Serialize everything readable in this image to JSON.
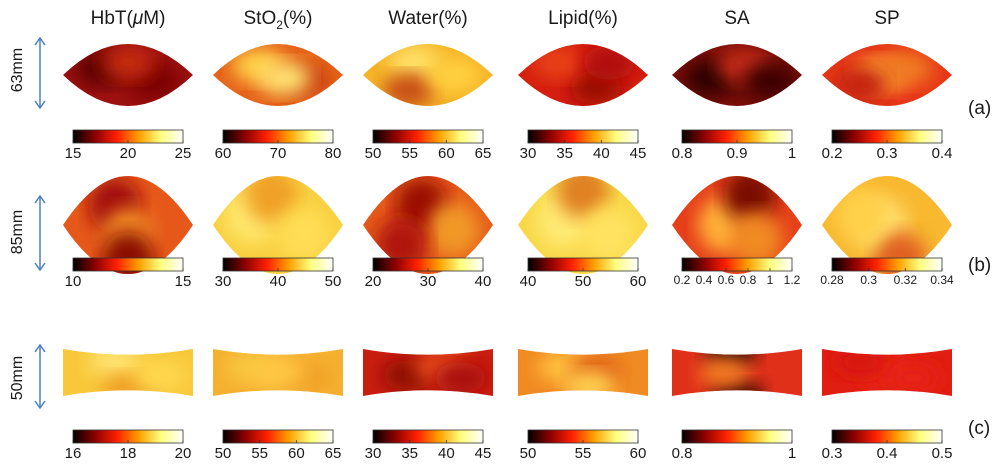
{
  "columns": [
    {
      "pre": "HbT(",
      "mu": "μ",
      "post": "M)",
      "sub": ""
    },
    {
      "pre": "StO",
      "mu": "",
      "post": "(%)",
      "sub": "2"
    },
    {
      "pre": "Water(%)",
      "mu": "",
      "post": "",
      "sub": ""
    },
    {
      "pre": "Lipid(%)",
      "mu": "",
      "post": "",
      "sub": ""
    },
    {
      "pre": "SA",
      "mu": "",
      "post": "",
      "sub": ""
    },
    {
      "pre": "SP",
      "mu": "",
      "post": "",
      "sub": ""
    }
  ],
  "rows": [
    {
      "label": "(a)",
      "size": "63mm",
      "shape": "lens",
      "maps": [
        {
          "base": "#9c1010",
          "spots": [
            [
              "#5a0000",
              0.3,
              0.4
            ],
            [
              "#7a0505",
              0.7,
              0.6
            ],
            [
              "#c42a10",
              0.5,
              0.3
            ]
          ]
        },
        {
          "base": "#e5641a",
          "spots": [
            [
              "#ffd24a",
              0.35,
              0.35
            ],
            [
              "#c83c10",
              0.7,
              0.6
            ],
            [
              "#ffe070",
              0.55,
              0.55
            ]
          ]
        },
        {
          "base": "#f5b428",
          "spots": [
            [
              "#ffe066",
              0.4,
              0.3
            ],
            [
              "#c85018",
              0.35,
              0.75
            ],
            [
              "#ffd040",
              0.7,
              0.5
            ]
          ]
        },
        {
          "base": "#d41e10",
          "spots": [
            [
              "#9a0a05",
              0.6,
              0.7
            ],
            [
              "#e84018",
              0.3,
              0.3
            ],
            [
              "#b01008",
              0.7,
              0.3
            ]
          ]
        },
        {
          "base": "#7a0d08",
          "spots": [
            [
              "#2a0000",
              0.3,
              0.55
            ],
            [
              "#c42a12",
              0.55,
              0.35
            ],
            [
              "#3a0000",
              0.75,
              0.6
            ]
          ]
        },
        {
          "base": "#e53818",
          "spots": [
            [
              "#ffa838",
              0.45,
              0.5
            ],
            [
              "#f07a20",
              0.65,
              0.4
            ],
            [
              "#c42010",
              0.3,
              0.65
            ]
          ]
        }
      ]
    },
    {
      "label": "(b)",
      "size": "85mm",
      "shape": "lens",
      "maps": [
        {
          "base": "#e5581a",
          "spots": [
            [
              "#a01008",
              0.4,
              0.3
            ],
            [
              "#f08820",
              0.5,
              0.6
            ],
            [
              "#8a0c05",
              0.5,
              0.85
            ]
          ]
        },
        {
          "base": "#f8d040",
          "spots": [
            [
              "#ffe870",
              0.3,
              0.4
            ],
            [
              "#f0a028",
              0.45,
              0.2
            ],
            [
              "#ffdd55",
              0.7,
              0.6
            ]
          ]
        },
        {
          "base": "#e55a1a",
          "spots": [
            [
              "#9a0c05",
              0.45,
              0.3
            ],
            [
              "#f09828",
              0.7,
              0.55
            ],
            [
              "#b01810",
              0.3,
              0.7
            ]
          ]
        },
        {
          "base": "#f8d848",
          "spots": [
            [
              "#ffea75",
              0.35,
              0.45
            ],
            [
              "#e08020",
              0.5,
              0.15
            ],
            [
              "#ffe260",
              0.7,
              0.6
            ]
          ]
        },
        {
          "base": "#e5401a",
          "spots": [
            [
              "#ffb038",
              0.4,
              0.5
            ],
            [
              "#7a0a05",
              0.6,
              0.2
            ],
            [
              "#f08a22",
              0.65,
              0.65
            ]
          ]
        },
        {
          "base": "#f8b830",
          "spots": [
            [
              "#ffe070",
              0.45,
              0.5
            ],
            [
              "#e06020",
              0.6,
              0.85
            ],
            [
              "#ffd048",
              0.3,
              0.4
            ]
          ]
        }
      ]
    },
    {
      "label": "(c)",
      "size": "50mm",
      "shape": "barrel",
      "maps": [
        {
          "base": "#f8c83a",
          "spots": [
            [
              "#ffe270",
              0.4,
              0.3
            ],
            [
              "#f0a028",
              0.5,
              0.8
            ],
            [
              "#ffd850",
              0.75,
              0.55
            ]
          ]
        },
        {
          "base": "#f5b030",
          "spots": [
            [
              "#f8c840",
              0.3,
              0.4
            ],
            [
              "#f0a028",
              0.7,
              0.6
            ],
            [
              "#ffc845",
              0.5,
              0.5
            ]
          ]
        },
        {
          "base": "#c81e10",
          "spots": [
            [
              "#8a0805",
              0.35,
              0.55
            ],
            [
              "#e8501a",
              0.6,
              0.4
            ],
            [
              "#a81008",
              0.75,
              0.6
            ]
          ]
        },
        {
          "base": "#f08a22",
          "spots": [
            [
              "#ffc040",
              0.35,
              0.4
            ],
            [
              "#e06018",
              0.6,
              0.5
            ],
            [
              "#ffd050",
              0.55,
              0.75
            ]
          ]
        },
        {
          "base": "#e0301a",
          "spots": [
            [
              "#1a0000",
              0.45,
              0.1
            ],
            [
              "#2a0000",
              0.5,
              0.92
            ],
            [
              "#f07a22",
              0.4,
              0.5
            ]
          ]
        },
        {
          "base": "#e01e12",
          "spots": [
            [
              "#e82818",
              0.5,
              0.5
            ],
            [
              "#d81810",
              0.3,
              0.3
            ],
            [
              "#e62414",
              0.7,
              0.6
            ]
          ]
        }
      ]
    }
  ],
  "colorbars": [
    [
      {
        "ticks": [
          "15",
          "20",
          "25"
        ],
        "small": false
      },
      {
        "ticks": [
          "60",
          "70",
          "80"
        ],
        "small": false
      },
      {
        "ticks": [
          "50",
          "55",
          "60",
          "65"
        ],
        "small": false
      },
      {
        "ticks": [
          "30",
          "35",
          "40",
          "45"
        ],
        "small": false
      },
      {
        "ticks": [
          "0.8",
          "0.9",
          "1"
        ],
        "small": false
      },
      {
        "ticks": [
          "0.2",
          "0.3",
          "0.4"
        ],
        "small": false
      }
    ],
    [
      {
        "ticks": [
          "10",
          "15"
        ],
        "small": false
      },
      {
        "ticks": [
          "30",
          "40",
          "50"
        ],
        "small": false
      },
      {
        "ticks": [
          "20",
          "30",
          "40"
        ],
        "small": false
      },
      {
        "ticks": [
          "40",
          "50",
          "60"
        ],
        "small": false
      },
      {
        "ticks": [
          "0.2",
          "0.4",
          "0.6",
          "0.8",
          "1",
          "1.2"
        ],
        "small": true
      },
      {
        "ticks": [
          "0.28",
          "0.3",
          "0.32",
          "0.34"
        ],
        "small": true
      }
    ],
    [
      {
        "ticks": [
          "16",
          "18",
          "20"
        ],
        "small": false
      },
      {
        "ticks": [
          "50",
          "55",
          "60",
          "65"
        ],
        "small": false
      },
      {
        "ticks": [
          "30",
          "35",
          "40",
          "45"
        ],
        "small": false
      },
      {
        "ticks": [
          "50",
          "55",
          "60"
        ],
        "small": false
      },
      {
        "ticks": [
          "0.8",
          "1"
        ],
        "small": false
      },
      {
        "ticks": [
          "0.3",
          "0.4",
          "0.5"
        ],
        "small": false
      }
    ]
  ],
  "colors": {
    "arrow": "#4a7fc0",
    "colormap": [
      "#000000",
      "#8b0000",
      "#ff2000",
      "#ffa000",
      "#ffff80",
      "#ffffff"
    ]
  }
}
